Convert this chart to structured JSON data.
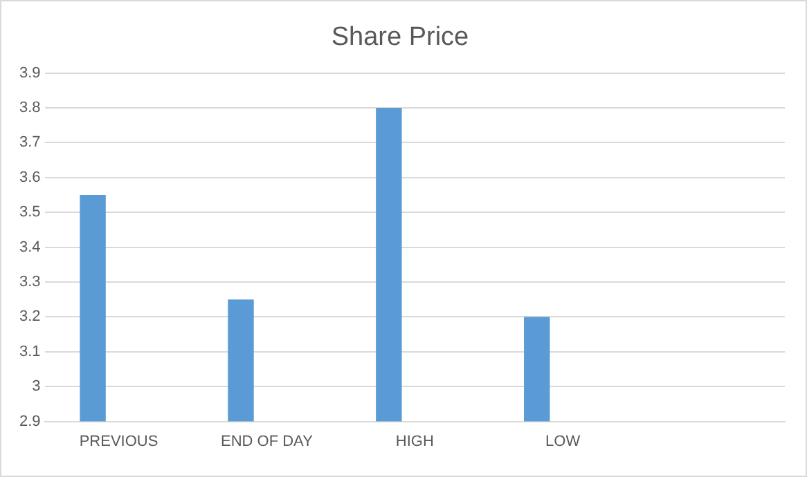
{
  "chart_data": {
    "type": "bar",
    "title": "Share Price",
    "categories": [
      "PREVIOUS",
      "END OF DAY",
      "HIGH",
      "LOW",
      null
    ],
    "values": [
      3.55,
      3.25,
      3.8,
      3.2,
      null
    ],
    "color": "#5b9bd5",
    "ylim": [
      2.9,
      3.9
    ],
    "yticks": [
      2.9,
      3,
      3.1,
      3.2,
      3.3,
      3.4,
      3.5,
      3.6,
      3.7,
      3.8,
      3.9
    ],
    "grid": "y"
  }
}
